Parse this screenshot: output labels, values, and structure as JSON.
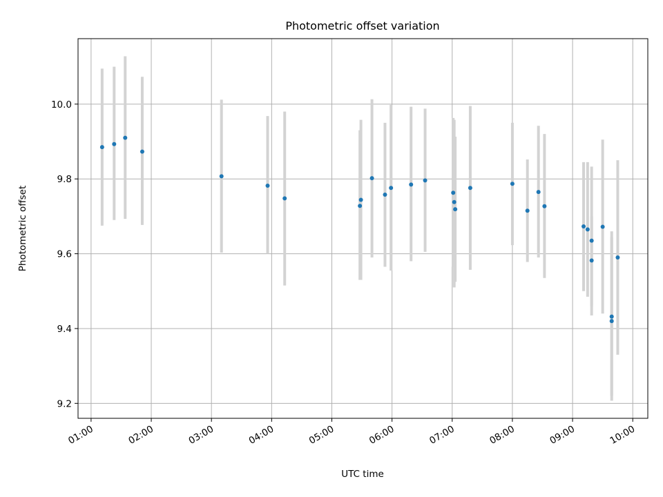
{
  "chart_data": {
    "type": "scatter",
    "title": "Photometric offset variation",
    "xlabel": "UTC time",
    "ylabel": "Photometric offset",
    "xlim": [
      "00:47",
      "10:15"
    ],
    "ylim": [
      9.16,
      10.175
    ],
    "x_ticks": [
      "01:00",
      "02:00",
      "03:00",
      "04:00",
      "05:00",
      "06:00",
      "07:00",
      "08:00",
      "09:00",
      "10:00"
    ],
    "y_ticks": [
      9.2,
      9.4,
      9.6,
      9.8,
      10.0
    ],
    "y_tick_labels": [
      "9.2",
      "9.4",
      "9.6",
      "9.8",
      "10.0"
    ],
    "grid": true,
    "point_color": "#1f77b4",
    "errorbar_color": "#d3d3d3",
    "points": [
      {
        "x": "01:11",
        "y": 9.885,
        "lo": 9.675,
        "hi": 10.095
      },
      {
        "x": "01:23",
        "y": 9.893,
        "lo": 9.69,
        "hi": 10.1
      },
      {
        "x": "01:34",
        "y": 9.91,
        "lo": 9.693,
        "hi": 10.128
      },
      {
        "x": "01:51",
        "y": 9.873,
        "lo": 9.677,
        "hi": 10.073
      },
      {
        "x": "03:10",
        "y": 9.807,
        "lo": 9.603,
        "hi": 10.012
      },
      {
        "x": "03:56",
        "y": 9.782,
        "lo": 9.6,
        "hi": 9.968
      },
      {
        "x": "04:13",
        "y": 9.748,
        "lo": 9.515,
        "hi": 9.98
      },
      {
        "x": "05:28",
        "y": 9.728,
        "lo": 9.53,
        "hi": 9.93
      },
      {
        "x": "05:29",
        "y": 9.744,
        "lo": 9.53,
        "hi": 9.958
      },
      {
        "x": "05:40",
        "y": 9.802,
        "lo": 9.59,
        "hi": 10.013
      },
      {
        "x": "05:53",
        "y": 9.758,
        "lo": 9.565,
        "hi": 9.95
      },
      {
        "x": "05:59",
        "y": 9.776,
        "lo": 9.555,
        "hi": 9.998
      },
      {
        "x": "06:19",
        "y": 9.785,
        "lo": 9.58,
        "hi": 9.993
      },
      {
        "x": "06:33",
        "y": 9.796,
        "lo": 9.605,
        "hi": 9.988
      },
      {
        "x": "07:01",
        "y": 9.763,
        "lo": 9.565,
        "hi": 9.963
      },
      {
        "x": "07:02",
        "y": 9.738,
        "lo": 9.51,
        "hi": 9.958
      },
      {
        "x": "07:03",
        "y": 9.719,
        "lo": 9.525,
        "hi": 9.913
      },
      {
        "x": "07:18",
        "y": 9.776,
        "lo": 9.557,
        "hi": 9.995
      },
      {
        "x": "08:00",
        "y": 9.787,
        "lo": 9.623,
        "hi": 9.95
      },
      {
        "x": "08:15",
        "y": 9.715,
        "lo": 9.578,
        "hi": 9.852
      },
      {
        "x": "08:26",
        "y": 9.765,
        "lo": 9.59,
        "hi": 9.942
      },
      {
        "x": "08:32",
        "y": 9.727,
        "lo": 9.535,
        "hi": 9.92
      },
      {
        "x": "09:11",
        "y": 9.673,
        "lo": 9.5,
        "hi": 9.845
      },
      {
        "x": "09:15",
        "y": 9.665,
        "lo": 9.485,
        "hi": 9.845
      },
      {
        "x": "09:19",
        "y": 9.635,
        "lo": 9.435,
        "hi": 9.833
      },
      {
        "x": "09:19",
        "y": 9.582,
        "lo": 9.46,
        "hi": 9.7
      },
      {
        "x": "09:30",
        "y": 9.672,
        "lo": 9.44,
        "hi": 9.905
      },
      {
        "x": "09:39",
        "y": 9.432,
        "lo": 9.22,
        "hi": 9.645
      },
      {
        "x": "09:39",
        "y": 9.42,
        "lo": 9.207,
        "hi": 9.66
      },
      {
        "x": "09:45",
        "y": 9.59,
        "lo": 9.33,
        "hi": 9.85
      }
    ]
  }
}
